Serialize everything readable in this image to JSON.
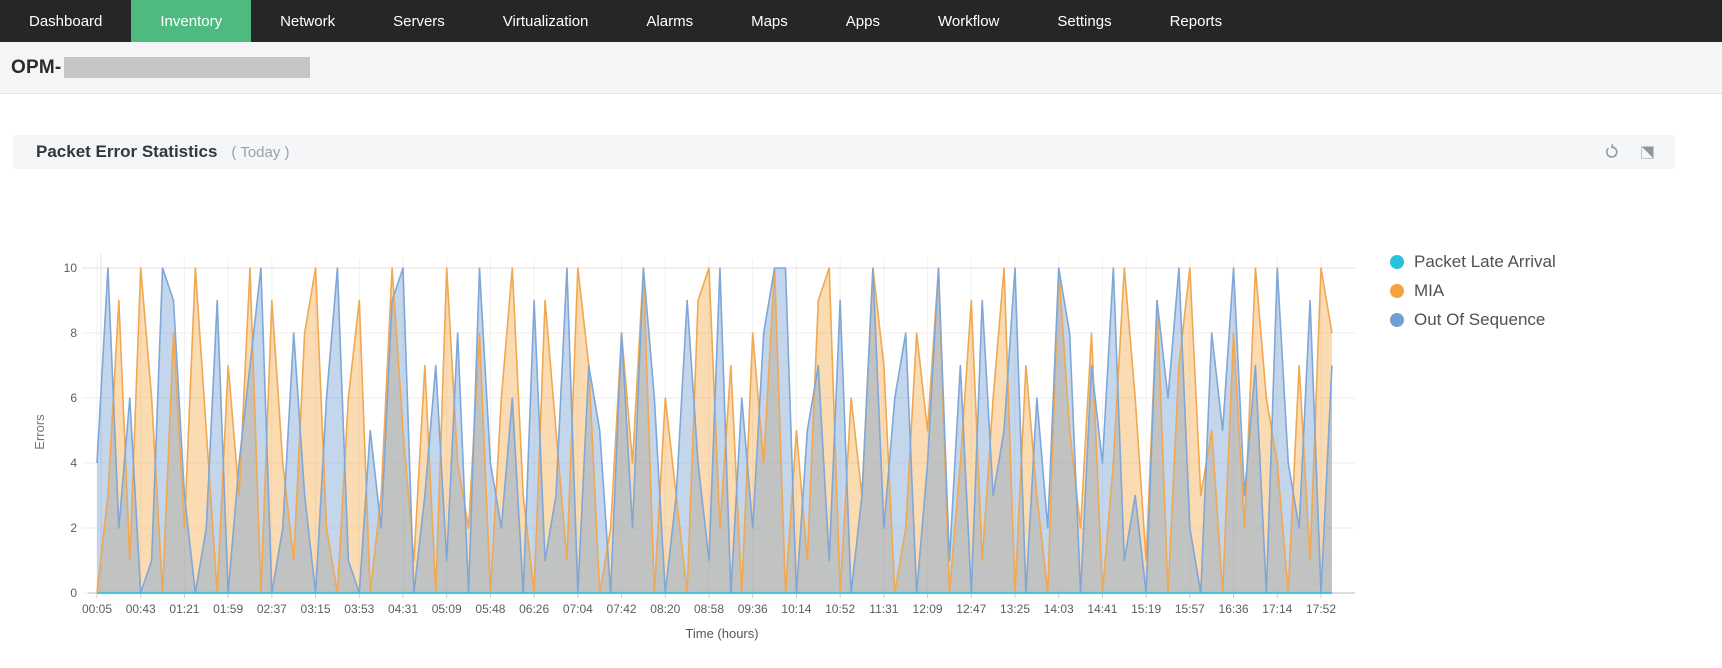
{
  "nav": {
    "tabs": [
      {
        "label": "Dashboard",
        "active": false
      },
      {
        "label": "Inventory",
        "active": true
      },
      {
        "label": "Network",
        "active": false
      },
      {
        "label": "Servers",
        "active": false
      },
      {
        "label": "Virtualization",
        "active": false
      },
      {
        "label": "Alarms",
        "active": false
      },
      {
        "label": "Maps",
        "active": false
      },
      {
        "label": "Apps",
        "active": false
      },
      {
        "label": "Workflow",
        "active": false
      },
      {
        "label": "Settings",
        "active": false
      },
      {
        "label": "Reports",
        "active": false
      }
    ],
    "bg_color": "#262626",
    "active_color": "#4eba7f"
  },
  "subheader": {
    "device_label": "OPM-",
    "redacted": true
  },
  "panel": {
    "title": "Packet Error Statistics",
    "period": "( Today )",
    "icons": [
      "refresh-icon",
      "detach-icon"
    ]
  },
  "chart_data": {
    "type": "area",
    "title": "Packet Error Statistics",
    "xlabel": "Time (hours)",
    "ylabel": "Errors",
    "ylim": [
      0,
      10
    ],
    "yticks": [
      0,
      2,
      4,
      6,
      8,
      10
    ],
    "grid": true,
    "legend_position": "right",
    "points_per_tick": 4,
    "x_tick_labels": [
      "00:05",
      "00:43",
      "01:21",
      "01:59",
      "02:37",
      "03:15",
      "03:53",
      "04:31",
      "05:09",
      "05:48",
      "06:26",
      "07:04",
      "07:42",
      "08:20",
      "08:58",
      "09:36",
      "10:14",
      "10:52",
      "11:31",
      "12:09",
      "12:47",
      "13:25",
      "14:03",
      "14:41",
      "15:19",
      "15:57",
      "16:36",
      "17:14",
      "17:52"
    ],
    "series": [
      {
        "name": "Packet Late Arrival",
        "color": "#27c2dc",
        "fill": "rgba(39,194,220,0.35)",
        "values": [
          0,
          0,
          0,
          0,
          0,
          0,
          0,
          0,
          0,
          0,
          0,
          0,
          0,
          0,
          0,
          0,
          0,
          0,
          0,
          0,
          0,
          0,
          0,
          0,
          0,
          0,
          0,
          0,
          0,
          0,
          0,
          0,
          0,
          0,
          0,
          0,
          0,
          0,
          0,
          0,
          0,
          0,
          0,
          0,
          0,
          0,
          0,
          0,
          0,
          0,
          0,
          0,
          0,
          0,
          0,
          0,
          0,
          0,
          0,
          0,
          0,
          0,
          0,
          0,
          0,
          0,
          0,
          0,
          0,
          0,
          0,
          0,
          0,
          0,
          0,
          0,
          0,
          0,
          0,
          0,
          0,
          0,
          0,
          0,
          0,
          0,
          0,
          0,
          0,
          0,
          0,
          0,
          0,
          0,
          0,
          0,
          0,
          0,
          0,
          0,
          0,
          0,
          0,
          0,
          0,
          0,
          0,
          0,
          0,
          0,
          0,
          0,
          0,
          0
        ]
      },
      {
        "name": "MIA",
        "color": "#f0a852",
        "fill": "rgba(244,164,62,0.40)",
        "values": [
          0,
          3,
          9,
          1,
          10,
          6,
          0,
          8,
          2,
          10,
          5,
          0,
          7,
          3,
          10,
          0,
          9,
          4,
          1,
          8,
          10,
          2,
          0,
          6,
          9,
          0,
          3,
          10,
          5,
          1,
          7,
          0,
          10,
          4,
          2,
          8,
          0,
          6,
          10,
          3,
          0,
          9,
          5,
          1,
          10,
          7,
          0,
          2,
          8,
          4,
          10,
          0,
          6,
          3,
          0,
          9,
          10,
          2,
          7,
          0,
          8,
          4,
          10,
          0,
          5,
          1,
          9,
          10,
          0,
          6,
          3,
          10,
          7,
          0,
          2,
          8,
          5,
          10,
          0,
          4,
          9,
          1,
          6,
          10,
          0,
          7,
          3,
          0,
          10,
          5,
          2,
          8,
          0,
          4,
          10,
          6,
          1,
          9,
          0,
          7,
          10,
          3,
          5,
          0,
          8,
          2,
          10,
          6,
          4,
          0,
          7,
          1,
          10,
          8
        ]
      },
      {
        "name": "Out Of Sequence",
        "color": "#7fa7d7",
        "fill": "rgba(122,163,212,0.45)",
        "values": [
          4,
          10,
          2,
          6,
          0,
          1,
          10,
          9,
          3,
          0,
          2,
          9,
          0,
          4,
          7,
          10,
          0,
          2,
          8,
          3,
          0,
          6,
          10,
          1,
          0,
          5,
          2,
          9,
          10,
          0,
          3,
          7,
          1,
          8,
          0,
          10,
          4,
          2,
          6,
          0,
          9,
          1,
          3,
          10,
          0,
          7,
          5,
          0,
          8,
          2,
          10,
          6,
          0,
          3,
          9,
          4,
          1,
          10,
          0,
          6,
          2,
          8,
          10,
          10,
          0,
          5,
          7,
          1,
          9,
          0,
          3,
          10,
          2,
          6,
          8,
          0,
          4,
          10,
          1,
          7,
          0,
          9,
          3,
          5,
          10,
          0,
          6,
          2,
          10,
          8,
          0,
          7,
          4,
          10,
          1,
          3,
          0,
          9,
          6,
          10,
          2,
          0,
          8,
          5,
          10,
          3,
          7,
          0,
          10,
          4,
          2,
          9,
          0,
          7
        ]
      }
    ]
  }
}
